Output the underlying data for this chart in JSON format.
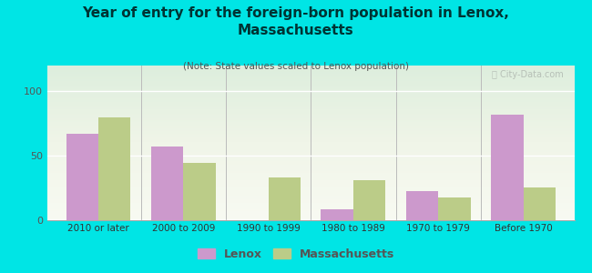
{
  "title": "Year of entry for the foreign-born population in Lenox,\nMassachusetts",
  "subtitle": "(Note: State values scaled to Lenox population)",
  "categories": [
    "2010 or later",
    "2000 to 2009",
    "1990 to 1999",
    "1980 to 1989",
    "1970 to 1979",
    "Before 1970"
  ],
  "lenox_values": [
    67,
    57,
    0,
    8,
    22,
    82
  ],
  "mass_values": [
    80,
    44,
    33,
    31,
    17,
    25
  ],
  "lenox_color": "#cc99cc",
  "mass_color": "#bbcc88",
  "background_outer": "#00e5e5",
  "background_chart_top": "#e8f0d8",
  "background_chart_bottom": "#f5f8ee",
  "ylim": [
    0,
    120
  ],
  "yticks": [
    0,
    50,
    100
  ],
  "bar_width": 0.38,
  "legend_labels": [
    "Lenox",
    "Massachusetts"
  ],
  "title_color": "#003333",
  "subtitle_color": "#555555",
  "tick_color": "#555555"
}
